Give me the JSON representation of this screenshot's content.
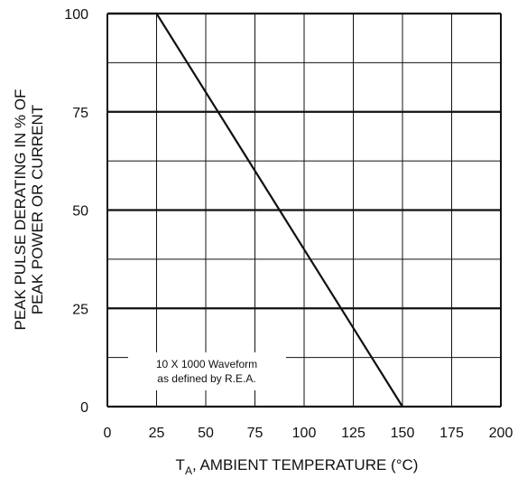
{
  "chart_data": {
    "type": "line",
    "title": "",
    "xlabel": {
      "main": "T",
      "sub": "A",
      "rest": ", AMBIENT TEMPERATURE (°C)"
    },
    "ylabel": {
      "line1": "PEAK PULSE DERATING IN % OF",
      "line2": "PEAK POWER OR CURRENT"
    },
    "xlim": [
      0,
      200
    ],
    "ylim": [
      0,
      100
    ],
    "x_ticks": [
      0,
      25,
      50,
      75,
      100,
      125,
      150,
      175,
      200
    ],
    "x_tick_labels": [
      "0",
      "25",
      "50",
      "75",
      "100",
      "125",
      "150",
      "175",
      "200"
    ],
    "y_ticks": [
      0,
      25,
      50,
      75,
      100
    ],
    "y_tick_labels": [
      "0",
      "25",
      "50",
      "75",
      "100"
    ],
    "y_minor_grid": [
      12.5,
      37.5,
      62.5,
      87.5
    ],
    "grid": true,
    "series": [
      {
        "points": [
          [
            0,
            100
          ],
          [
            25,
            100
          ],
          [
            150,
            0
          ]
        ]
      }
    ],
    "annotation": {
      "line1": "10 X 1000 Waveform",
      "line2": "as defined by R.E.A."
    }
  },
  "colors": {
    "line": "#111111",
    "grid": "#111111",
    "background": "#ffffff"
  }
}
